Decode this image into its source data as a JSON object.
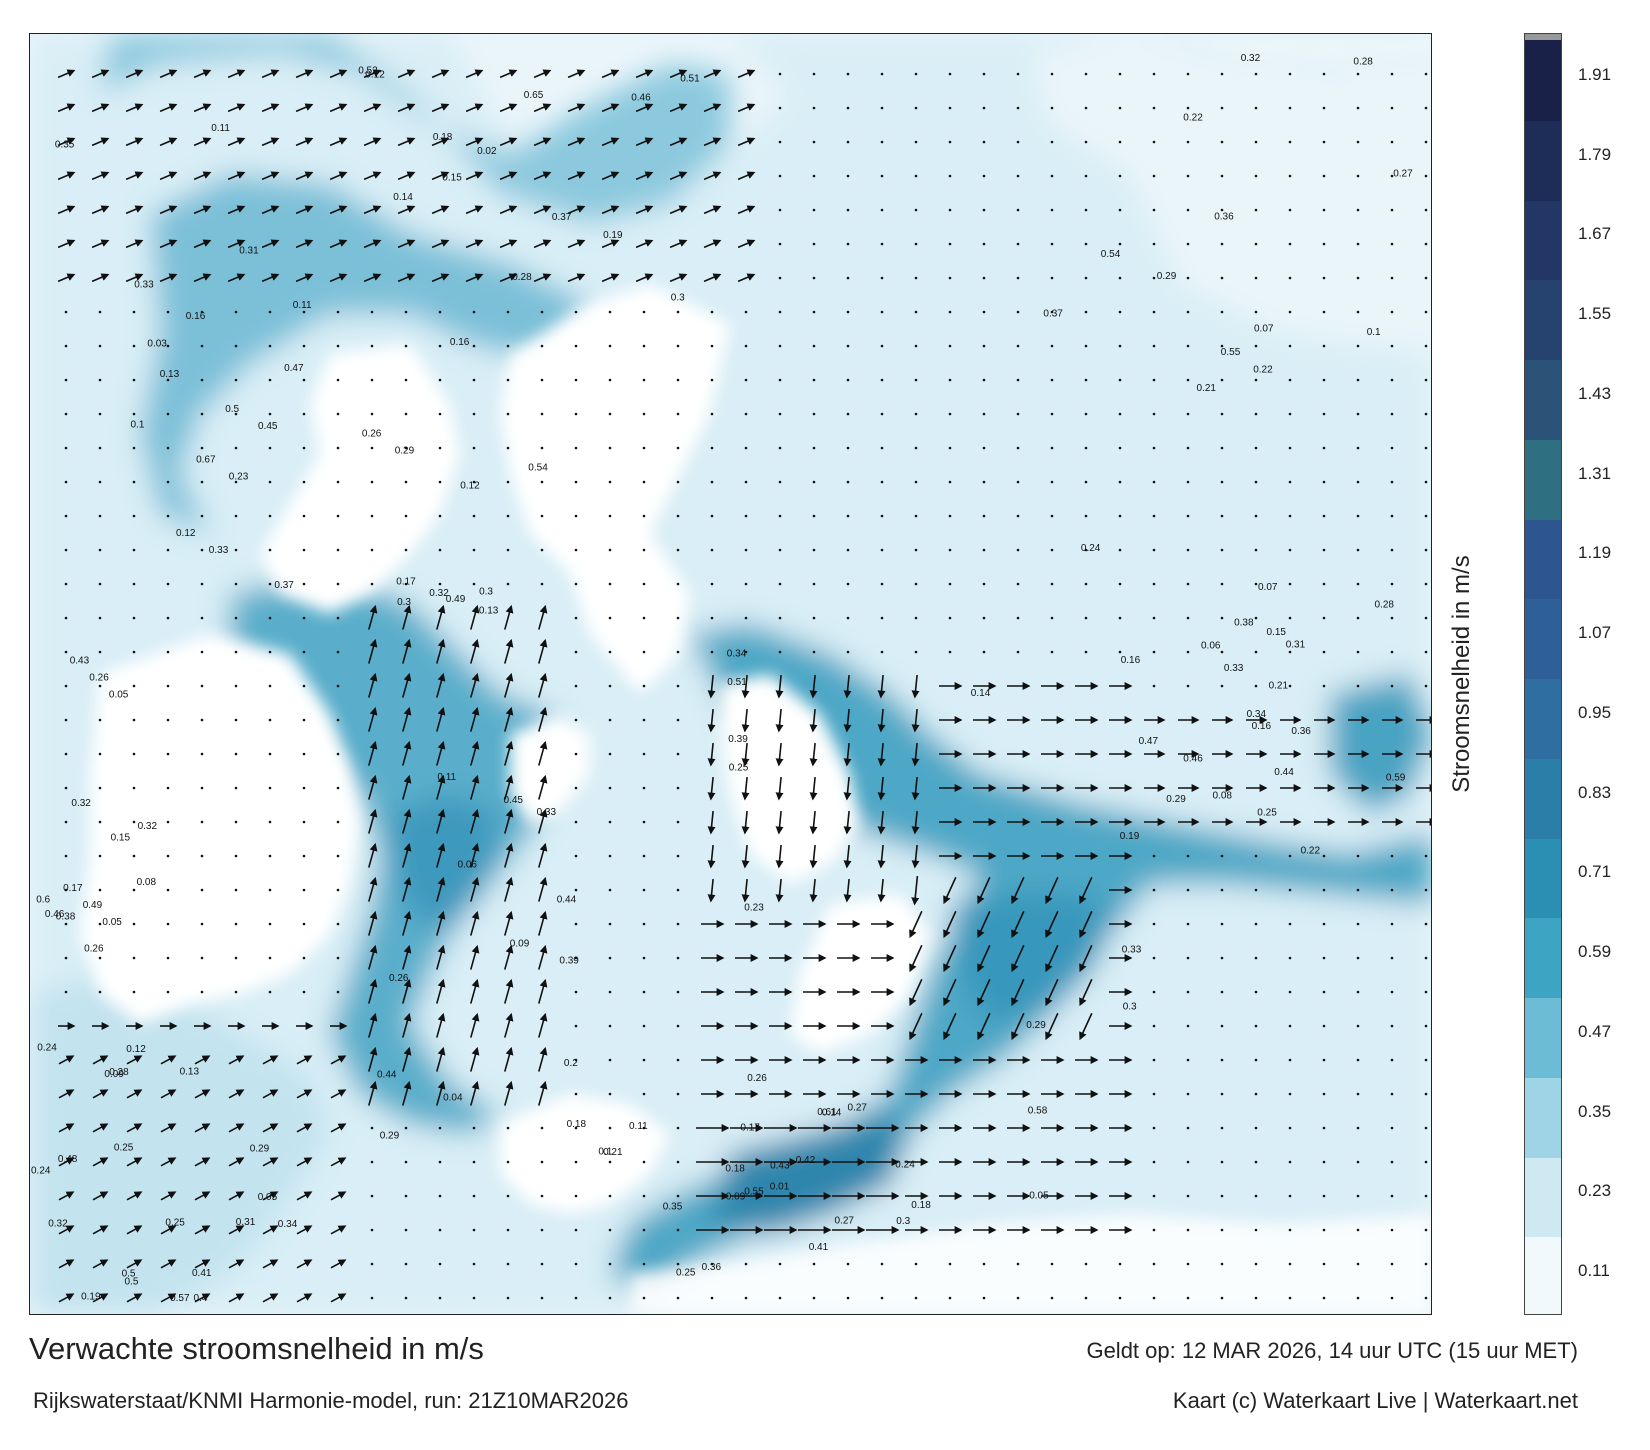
{
  "title": "Verwachte stroomsnelheid in m/s",
  "subtitle": "Rijkswaterstaat/KNMI Harmonie-model, run: 21Z10MAR2026",
  "valid_time": "Geldt op: 12 MAR 2026, 14 uur UTC (15 uur MET)",
  "credit": "Kaart (c) Waterkaart Live | Waterkaart.net",
  "colorbar": {
    "title": "Stroomsnelheid in m/s",
    "labels": [
      "0.11",
      "0.23",
      "0.35",
      "0.47",
      "0.59",
      "0.71",
      "0.83",
      "0.95",
      "1.07",
      "1.19",
      "1.31",
      "1.43",
      "1.55",
      "1.67",
      "1.79",
      "1.91"
    ],
    "colors": [
      "#f2f9fc",
      "#cfe9f2",
      "#9fd4e6",
      "#6cbcd6",
      "#3ea4c4",
      "#2b8fb3",
      "#2b7ea7",
      "#2f6ea0",
      "#2e5f98",
      "#2d5590",
      "#2e6f82",
      "#2a5377",
      "#26426f",
      "#223766",
      "#1e2c58",
      "#1a2148"
    ]
  },
  "map": {
    "colors": {
      "land": "#ffffff",
      "sea_low": "#e8f4f9",
      "sea_mid": "#a8d8e8",
      "sea_high": "#3f9cbc",
      "sea_max": "#1f6f94",
      "arrow": "#111111"
    },
    "point_labels": [
      "0.14",
      "0.13",
      "0.06",
      "0.18",
      "0.07",
      "0.08",
      "0.05",
      "0.13",
      "0.14",
      "0.15",
      "0.16",
      "0.18",
      "0.23",
      "0.27",
      "0.16",
      "0.15",
      "0.19",
      "0.17",
      "0.18",
      "0.12",
      "0.11",
      "0.09",
      "0.16",
      "0.15",
      "0.05",
      "0.05",
      "0.11",
      "0.12",
      "0.1",
      "0.09",
      "0.19",
      "0.21",
      "0.25",
      "0.26",
      "0.28",
      "0.27",
      "0.31",
      "0.3",
      "0.2",
      "0.29",
      "0.32",
      "0.33",
      "0.38",
      "0.31",
      "0.25",
      "0.35",
      "0.26",
      "0.29",
      "0.24",
      "0.22",
      "0.29",
      "0.32",
      "0.24",
      "0.27",
      "0.28",
      "0.33",
      "0.3",
      "0.34",
      "0.38",
      "0.28",
      "0.26",
      "0.25",
      "0.21",
      "0.11",
      "0.16",
      "0.17",
      "0.14",
      "0.22",
      "0.21",
      "0.24",
      "0.25",
      "0.36",
      "0.37",
      "0.5",
      "0.44",
      "0.51",
      "0.54",
      "0.47",
      "0.49",
      "0.41",
      "0.43",
      "0.33",
      "0.29",
      "0.39",
      "0.3",
      "0.1",
      "0.44",
      "0.5",
      "0.4",
      "0.41",
      "0.52",
      "0.54",
      "0.45",
      "0.58",
      "0.55",
      "0.59",
      "0.6",
      "0.57",
      "0.61",
      "0.65",
      "0.67",
      "0.32",
      "0.33",
      "0.37",
      "0.46",
      "0.48",
      "0.5",
      "0.42",
      "0.46",
      "0.45",
      "0.44",
      "0.39",
      "0.36",
      "0.34",
      "0.43",
      "0.32",
      "0.55",
      "0.51",
      "0.47",
      "0.49",
      "0.26",
      "0.28",
      "0.31",
      "0.32",
      "0.29",
      "0.35",
      "0.3",
      "0.37",
      "0.33",
      "0.25",
      "0.24",
      "0.22",
      "0.17",
      "0.12",
      "0.18",
      "0.19",
      "0.23",
      "0.26",
      "0.3",
      "0.29",
      "0.36",
      "0.46",
      "0.34",
      "0.01",
      "0.02",
      "0.03",
      "0.04",
      "0.05",
      "0.06",
      "0.07",
      "0.08",
      "0.09",
      "0.1",
      "0.11",
      "0.12",
      "0.13"
    ]
  }
}
